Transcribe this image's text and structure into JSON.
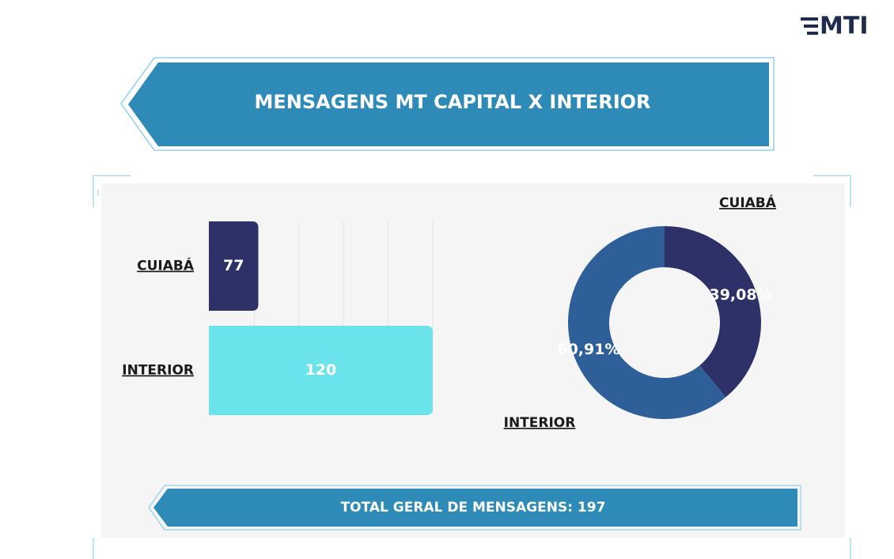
{
  "logo": "MTI",
  "header": {
    "title": "MENSAGENS MT CAPITAL X INTERIOR"
  },
  "chart_data": [
    {
      "type": "hbar",
      "categories": [
        "CUIABÁ",
        "INTERIOR"
      ],
      "values": [
        77,
        120
      ],
      "colors": [
        "#2d3168",
        "#6ae3ea"
      ],
      "xlim": [
        64.8,
        121
      ],
      "xticks": [
        76,
        87,
        98,
        109,
        120
      ],
      "grid": true
    },
    {
      "type": "donut",
      "categories": [
        "CUIABÁ",
        "INTERIOR"
      ],
      "values": [
        39.08,
        60.91
      ],
      "value_labels": [
        "39,08%",
        "60,91%"
      ],
      "colors": [
        "#2d3168",
        "#2e5f98"
      ]
    }
  ],
  "footer": {
    "text": "TOTAL GERAL DE MENSAGENS: 197"
  }
}
